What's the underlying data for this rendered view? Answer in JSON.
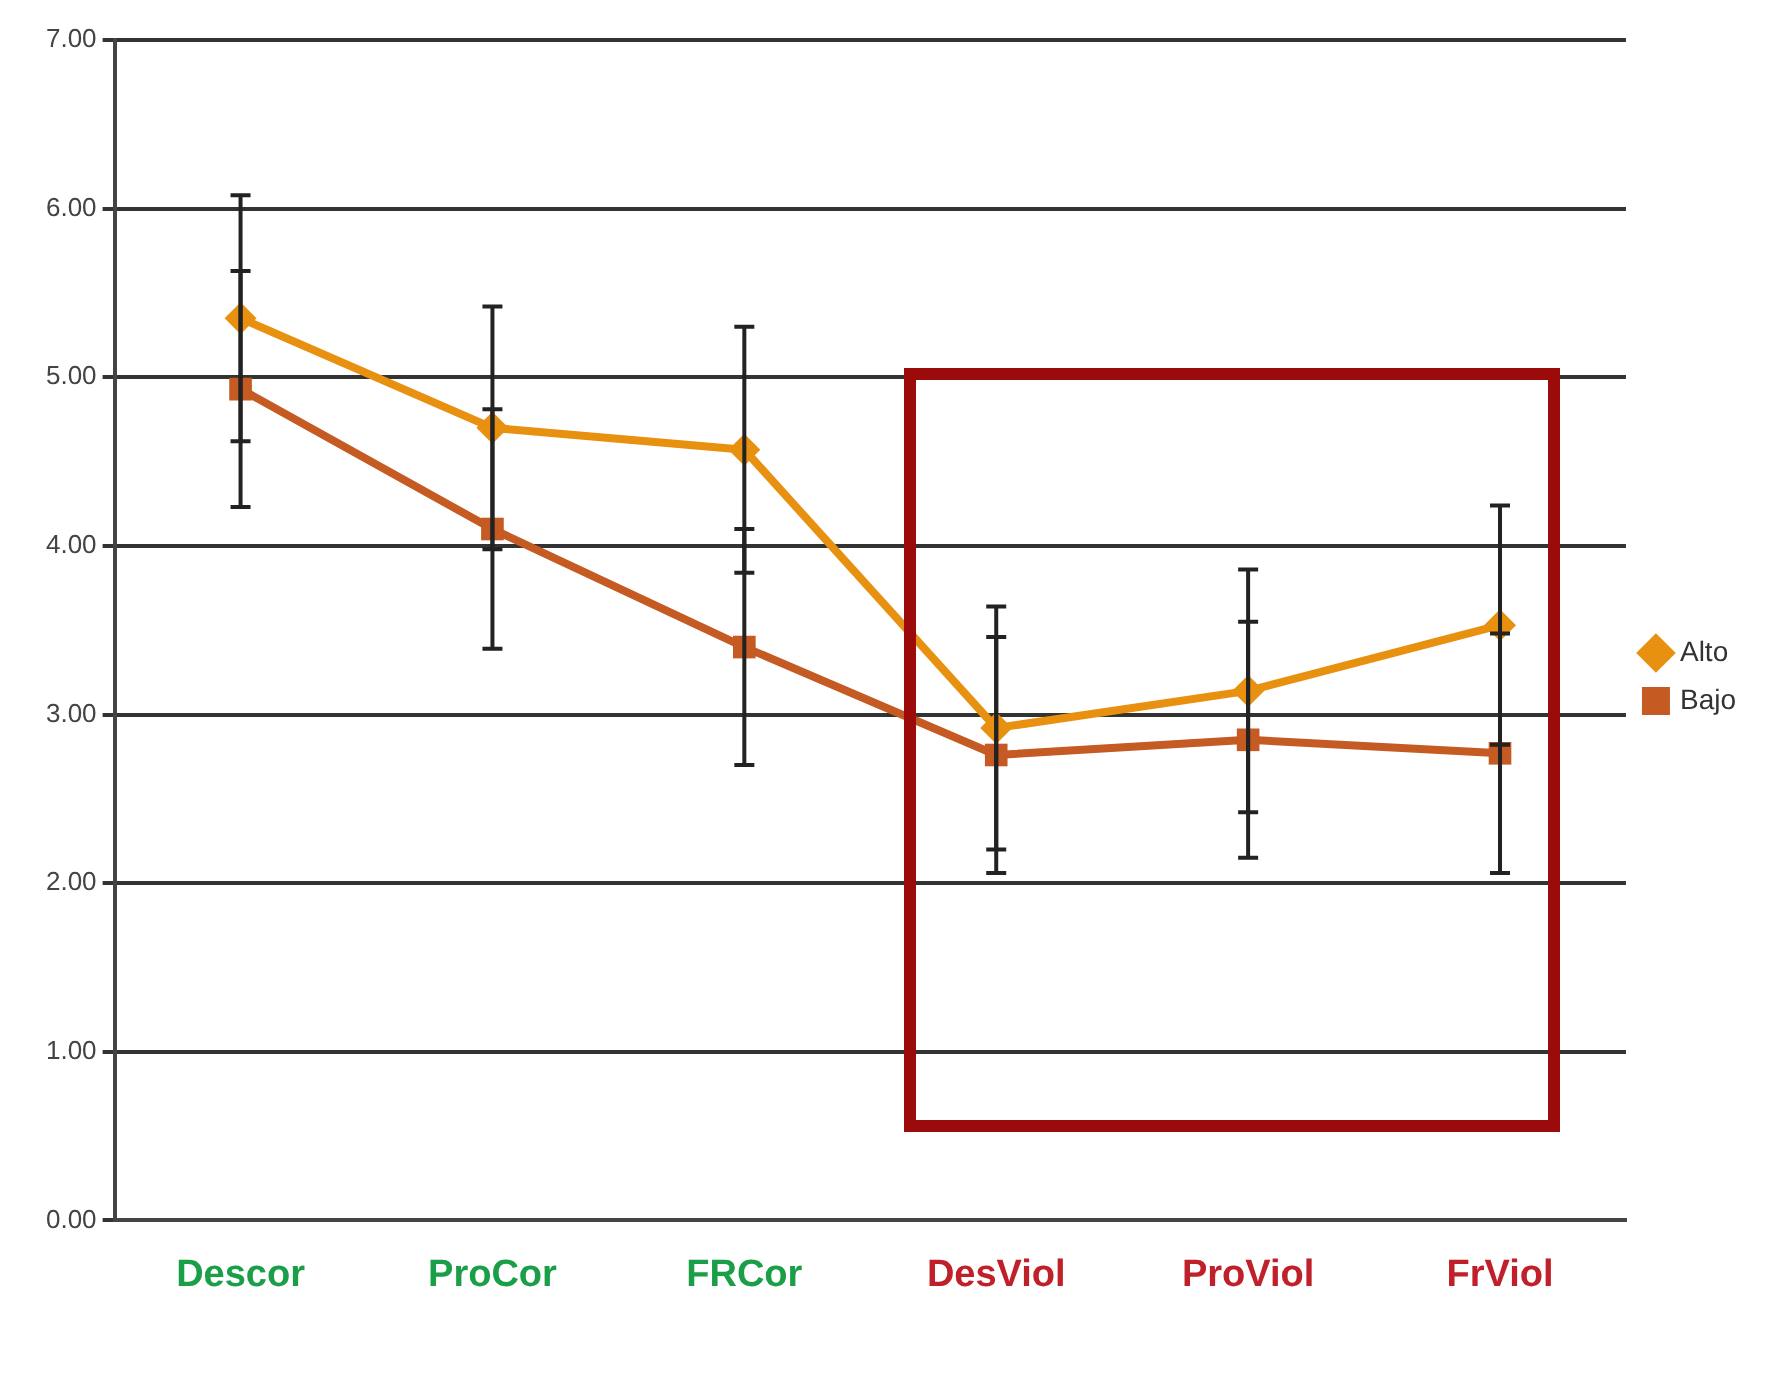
{
  "chart_data": {
    "type": "line",
    "categories": [
      "Descor",
      "ProCor",
      "FRCor",
      "DesViol",
      "ProViol",
      "FrViol"
    ],
    "series": [
      {
        "name": "Alto",
        "color": "#e8900f",
        "marker": "diamond",
        "values": [
          5.35,
          4.7,
          4.57,
          2.92,
          3.14,
          3.53
        ],
        "errors": [
          0.73,
          0.72,
          0.73,
          0.72,
          0.72,
          0.71
        ]
      },
      {
        "name": "Bajo",
        "color": "#c55a22",
        "marker": "square",
        "values": [
          4.93,
          4.1,
          3.4,
          2.76,
          2.85,
          2.77
        ],
        "errors": [
          0.7,
          0.71,
          0.7,
          0.7,
          0.7,
          0.71
        ]
      }
    ],
    "ylim": [
      0,
      7
    ],
    "yticks": [
      {
        "value": 0,
        "label": "0.00"
      },
      {
        "value": 1,
        "label": "1.00"
      },
      {
        "value": 2,
        "label": "2.00"
      },
      {
        "value": 3,
        "label": "3.00"
      },
      {
        "value": 4,
        "label": "4.00"
      },
      {
        "value": 5,
        "label": "5.00"
      },
      {
        "value": 6,
        "label": "6.00"
      },
      {
        "value": 7,
        "label": "7.00"
      }
    ],
    "grid": "y",
    "legend": "right",
    "line_style": "solid"
  }
}
